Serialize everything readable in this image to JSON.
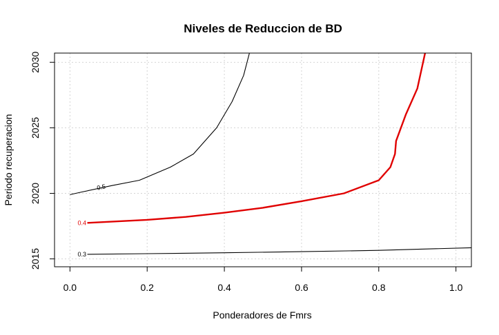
{
  "chart_data": {
    "type": "line",
    "title": "Niveles de Reduccion de BD",
    "xlabel": "Ponderadores de Fmrs",
    "ylabel": "Periodo recuperacion",
    "xlim": [
      -0.04,
      1.04
    ],
    "ylim": [
      2014.4,
      2030.7
    ],
    "x_ticks": [
      0.0,
      0.2,
      0.4,
      0.6,
      0.8,
      1.0
    ],
    "x_tick_labels": [
      "0.0",
      "0.2",
      "0.4",
      "0.6",
      "0.8",
      "1.0"
    ],
    "y_ticks": [
      2015,
      2020,
      2025,
      2030
    ],
    "y_tick_labels": [
      "2015",
      "2020",
      "2025",
      "2030"
    ],
    "grid": true,
    "series": [
      {
        "name": "0.3",
        "color": "#000000",
        "label_at": [
          0.02,
          2015.35
        ],
        "x": [
          0.045,
          0.2,
          0.4,
          0.6,
          0.8,
          1.04
        ],
        "y": [
          2015.35,
          2015.4,
          2015.47,
          2015.55,
          2015.65,
          2015.85
        ]
      },
      {
        "name": "0.4",
        "color": "#e00000",
        "label_at": [
          0.02,
          2017.75
        ],
        "x": [
          0.045,
          0.2,
          0.3,
          0.4,
          0.5,
          0.6,
          0.71,
          0.8,
          0.83,
          0.842,
          0.845,
          0.87,
          0.9,
          0.92
        ],
        "y": [
          2017.75,
          2017.98,
          2018.2,
          2018.52,
          2018.9,
          2019.4,
          2020.0,
          2021.0,
          2022.0,
          2023.0,
          2024.0,
          2026.0,
          2028.0,
          2030.7
        ],
        "highlight": true
      },
      {
        "name": "0.5",
        "color": "#000000",
        "label_at": [
          0.07,
          2020.4
        ],
        "x": [
          0.0,
          0.03,
          0.11,
          0.18,
          0.26,
          0.32,
          0.38,
          0.42,
          0.45,
          0.465
        ],
        "y": [
          2019.9,
          2020.1,
          2020.6,
          2021.0,
          2022.0,
          2023.0,
          2025.0,
          2027.0,
          2029.0,
          2030.7
        ]
      }
    ]
  }
}
